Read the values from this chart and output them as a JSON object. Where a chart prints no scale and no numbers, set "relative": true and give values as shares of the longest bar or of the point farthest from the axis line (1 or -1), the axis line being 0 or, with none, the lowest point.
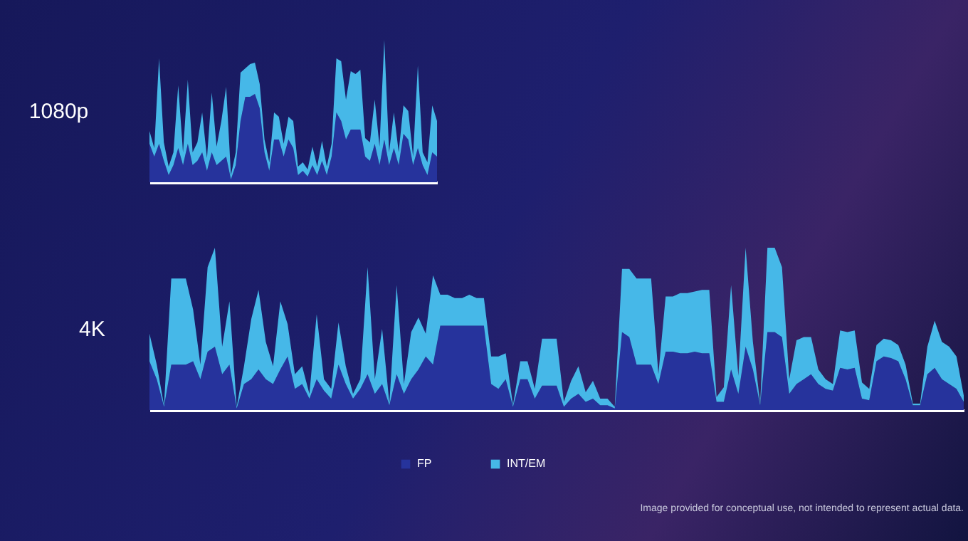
{
  "chart_data": [
    {
      "type": "area",
      "title": "1080p",
      "relative": true,
      "stacked": true,
      "legend": "bottom",
      "categories": [
        null,
        null,
        null,
        null,
        null,
        null,
        null,
        null,
        null,
        null,
        null,
        null,
        null,
        null,
        null,
        null,
        null,
        null,
        null,
        null,
        null,
        null,
        null,
        null,
        null,
        null,
        null,
        null,
        null,
        null,
        null,
        null,
        null,
        null,
        null,
        null,
        null,
        null,
        null,
        null,
        null,
        null,
        null,
        null,
        null,
        null,
        null,
        null,
        null,
        null,
        null,
        null,
        null,
        null,
        null,
        null,
        null,
        null,
        null,
        null,
        null
      ],
      "series": [
        {
          "name": "FP",
          "color": "#26339c",
          "values": [
            0.27,
            0.18,
            0.27,
            0.15,
            0.05,
            0.12,
            0.24,
            0.12,
            0.27,
            0.12,
            0.15,
            0.21,
            0.08,
            0.21,
            0.12,
            0.15,
            0.18,
            0.02,
            0.12,
            0.43,
            0.6,
            0.6,
            0.62,
            0.52,
            0.21,
            0.08,
            0.3,
            0.3,
            0.18,
            0.3,
            0.24,
            0.05,
            0.08,
            0.04,
            0.12,
            0.05,
            0.15,
            0.05,
            0.18,
            0.49,
            0.43,
            0.3,
            0.37,
            0.37,
            0.37,
            0.18,
            0.15,
            0.27,
            0.12,
            0.3,
            0.12,
            0.24,
            0.12,
            0.34,
            0.3,
            0.12,
            0.24,
            0.12,
            0.05,
            0.21,
            0.18
          ]
        },
        {
          "name": "INT/EM",
          "color": "#46b8e8",
          "values": [
            0.09,
            0.06,
            0.6,
            0.13,
            0.06,
            0.09,
            0.44,
            0.09,
            0.45,
            0.09,
            0.13,
            0.28,
            0.09,
            0.42,
            0.13,
            0.28,
            0.49,
            0.03,
            0.09,
            0.34,
            0.2,
            0.23,
            0.22,
            0.17,
            0.09,
            0.06,
            0.19,
            0.16,
            0.09,
            0.16,
            0.19,
            0.06,
            0.06,
            0.05,
            0.13,
            0.06,
            0.14,
            0.06,
            0.09,
            0.38,
            0.42,
            0.28,
            0.41,
            0.39,
            0.42,
            0.13,
            0.13,
            0.31,
            0.13,
            0.7,
            0.09,
            0.25,
            0.09,
            0.2,
            0.2,
            0.06,
            0.58,
            0.09,
            0.09,
            0.33,
            0.25
          ]
        }
      ]
    },
    {
      "type": "area",
      "title": "4K",
      "relative": true,
      "stacked": true,
      "legend": "bottom",
      "annotations": [
        "Image provided for conceptual use, not intended to represent actual data."
      ],
      "categories": [
        null,
        null,
        null,
        null,
        null,
        null,
        null,
        null,
        null,
        null,
        null,
        null,
        null,
        null,
        null,
        null,
        null,
        null,
        null,
        null,
        null,
        null,
        null,
        null,
        null,
        null,
        null,
        null,
        null,
        null,
        null,
        null,
        null,
        null,
        null,
        null,
        null,
        null,
        null,
        null,
        null,
        null,
        null,
        null,
        null,
        null,
        null,
        null,
        null,
        null,
        null,
        null,
        null,
        null,
        null,
        null,
        null,
        null,
        null,
        null,
        null,
        null,
        null,
        null,
        null,
        null,
        null,
        null,
        null,
        null,
        null,
        null,
        null,
        null,
        null,
        null,
        null,
        null,
        null,
        null,
        null,
        null,
        null,
        null,
        null,
        null,
        null,
        null,
        null,
        null,
        null,
        null,
        null,
        null,
        null,
        null,
        null,
        null,
        null,
        null,
        null,
        null,
        null,
        null,
        null,
        null,
        null,
        null,
        null,
        null,
        null,
        null,
        null
      ],
      "series": [
        {
          "name": "FP",
          "color": "#26339c",
          "values": [
            0.3,
            0.19,
            0.02,
            0.28,
            0.28,
            0.28,
            0.3,
            0.19,
            0.36,
            0.39,
            0.22,
            0.28,
            0.01,
            0.16,
            0.19,
            0.25,
            0.19,
            0.16,
            0.25,
            0.33,
            0.13,
            0.16,
            0.07,
            0.19,
            0.12,
            0.07,
            0.28,
            0.16,
            0.07,
            0.13,
            0.22,
            0.1,
            0.16,
            0.03,
            0.22,
            0.1,
            0.19,
            0.25,
            0.33,
            0.28,
            0.52,
            0.52,
            0.52,
            0.52,
            0.52,
            0.52,
            0.52,
            0.16,
            0.13,
            0.19,
            0.02,
            0.19,
            0.19,
            0.07,
            0.15,
            0.15,
            0.15,
            0.02,
            0.07,
            0.1,
            0.05,
            0.07,
            0.03,
            0.03,
            0.01,
            0.48,
            0.45,
            0.28,
            0.28,
            0.28,
            0.16,
            0.36,
            0.36,
            0.35,
            0.35,
            0.36,
            0.35,
            0.35,
            0.05,
            0.05,
            0.25,
            0.1,
            0.39,
            0.25,
            0.03,
            0.48,
            0.48,
            0.45,
            0.1,
            0.16,
            0.19,
            0.22,
            0.16,
            0.13,
            0.12,
            0.26,
            0.25,
            0.26,
            0.07,
            0.06,
            0.3,
            0.33,
            0.32,
            0.3,
            0.19,
            0.03,
            0.03,
            0.22,
            0.26,
            0.19,
            0.16,
            0.13,
            0.05
          ]
        },
        {
          "name": "INT/EM",
          "color": "#46b8e8",
          "values": [
            0.17,
            0.09,
            0.01,
            0.53,
            0.53,
            0.53,
            0.32,
            0.09,
            0.52,
            0.61,
            0.17,
            0.39,
            0.01,
            0.11,
            0.37,
            0.49,
            0.23,
            0.11,
            0.42,
            0.2,
            0.09,
            0.11,
            0.03,
            0.4,
            0.07,
            0.06,
            0.26,
            0.11,
            0.03,
            0.06,
            0.66,
            0.09,
            0.34,
            0.01,
            0.55,
            0.06,
            0.29,
            0.32,
            0.14,
            0.55,
            0.19,
            0.19,
            0.17,
            0.17,
            0.19,
            0.17,
            0.17,
            0.17,
            0.2,
            0.16,
            0.01,
            0.11,
            0.11,
            0.06,
            0.29,
            0.29,
            0.29,
            0.03,
            0.11,
            0.17,
            0.06,
            0.11,
            0.04,
            0.04,
            0.01,
            0.39,
            0.42,
            0.53,
            0.53,
            0.53,
            0.06,
            0.34,
            0.34,
            0.37,
            0.37,
            0.37,
            0.39,
            0.39,
            0.03,
            0.09,
            0.52,
            0.11,
            0.61,
            0.17,
            0.01,
            0.52,
            0.52,
            0.43,
            0.09,
            0.27,
            0.26,
            0.23,
            0.09,
            0.06,
            0.04,
            0.23,
            0.23,
            0.23,
            0.1,
            0.07,
            0.1,
            0.11,
            0.11,
            0.1,
            0.09,
            0.01,
            0.01,
            0.17,
            0.29,
            0.23,
            0.23,
            0.2,
            0.04
          ]
        }
      ]
    }
  ]
}
